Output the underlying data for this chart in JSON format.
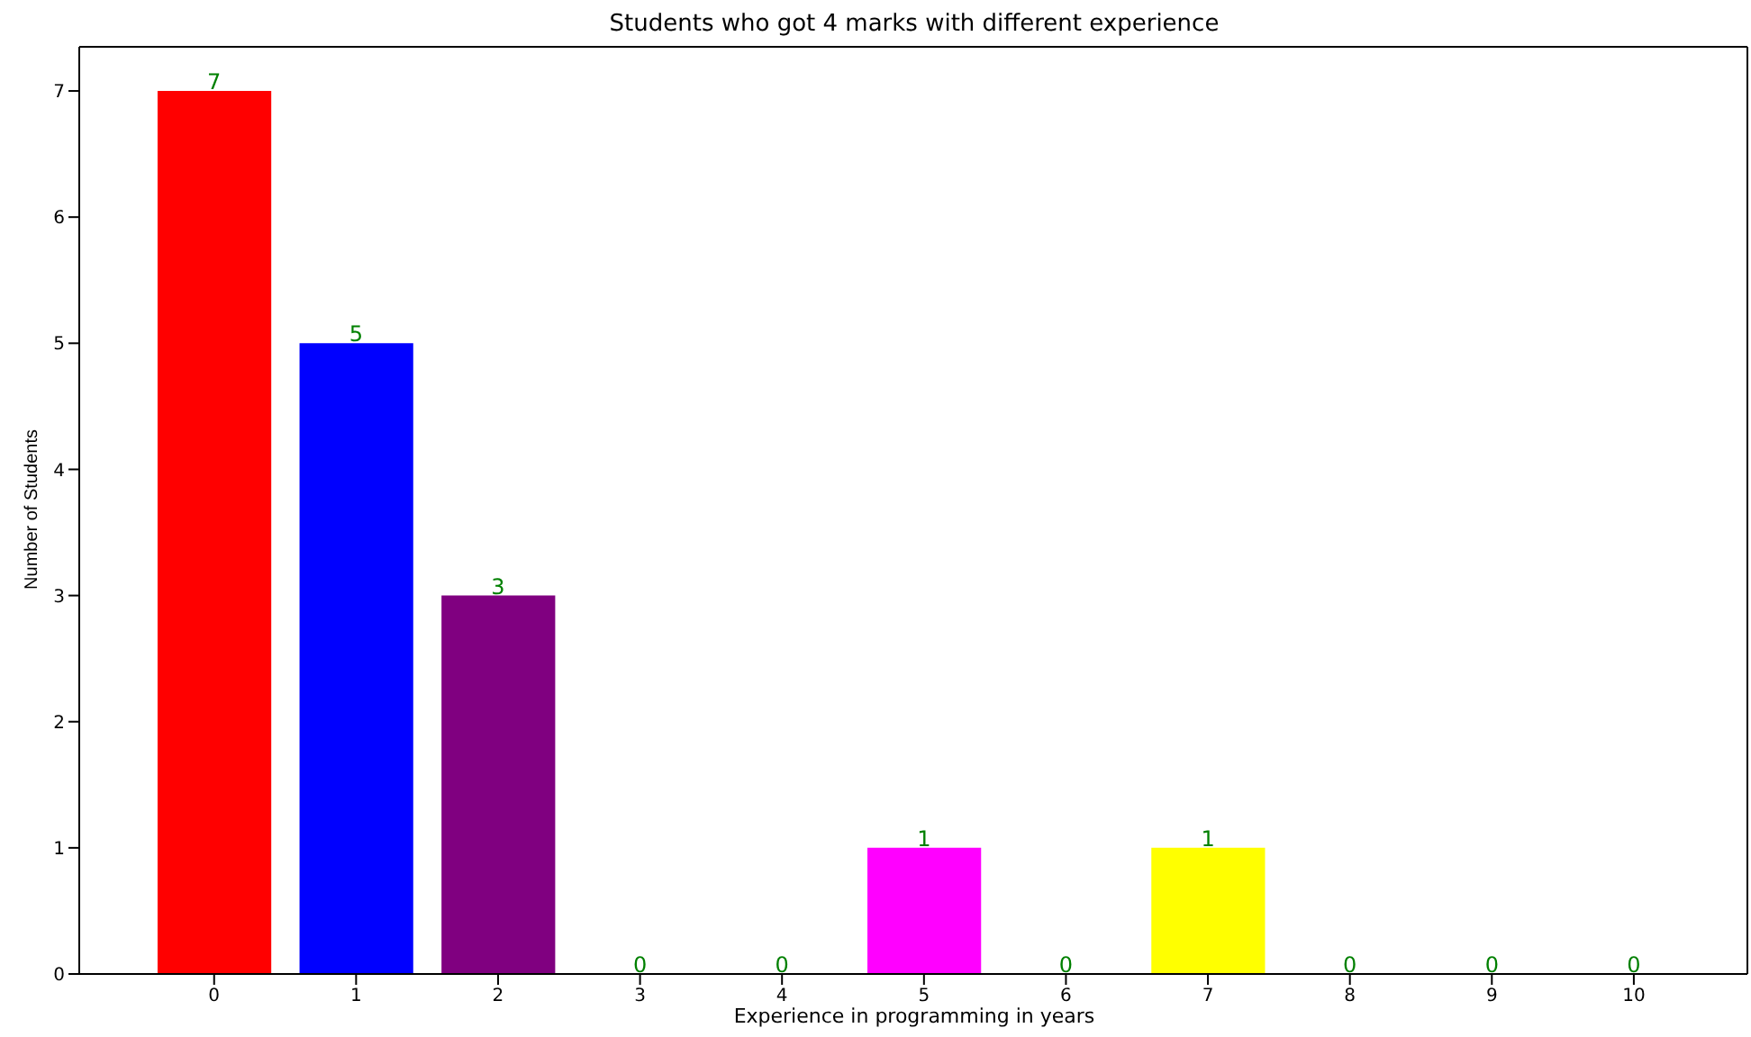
{
  "chart_data": {
    "type": "bar",
    "title": "Students who got 4 marks with different experience",
    "xlabel": "Experience in programming in years",
    "ylabel": "Number of Students",
    "x": [
      0,
      1,
      2,
      3,
      4,
      5,
      6,
      7,
      8,
      9,
      10
    ],
    "values": [
      7,
      5,
      3,
      0,
      0,
      1,
      0,
      1,
      0,
      0,
      0
    ],
    "colors": [
      "#ff0000",
      "#0000ff",
      "#800080",
      null,
      null,
      "#ff00ff",
      null,
      "#ffff00",
      null,
      null,
      null
    ],
    "xlim": [
      -0.95,
      10.8
    ],
    "xticks": [
      0,
      1,
      2,
      3,
      4,
      5,
      6,
      7,
      8,
      9,
      10
    ],
    "ylim": [
      0,
      7.35
    ],
    "yticks": [
      0,
      1,
      2,
      3,
      4,
      5,
      6,
      7
    ],
    "data_labels": true,
    "grid": false,
    "legend": false
  }
}
